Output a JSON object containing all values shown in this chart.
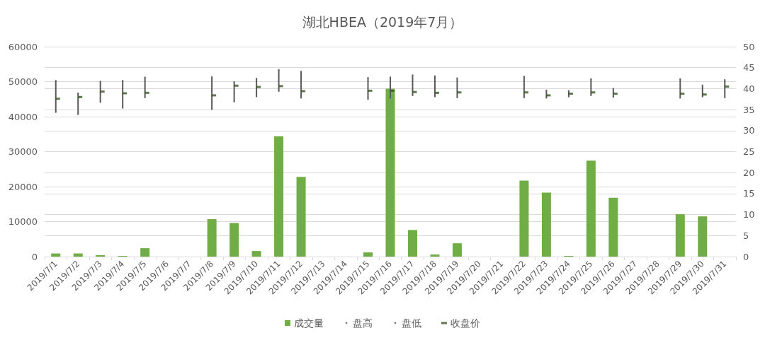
{
  "chart_data": {
    "type": "bar",
    "title": "湖北HBEA（2019年7月）",
    "categories": [
      "2019/7/1",
      "2019/7/2",
      "2019/7/3",
      "2019/7/4",
      "2019/7/5",
      "2019/7/6",
      "2019/7/7",
      "2019/7/8",
      "2019/7/9",
      "2019/7/10",
      "2019/7/11",
      "2019/7/12",
      "2019/7/13",
      "2019/7/14",
      "2019/7/15",
      "2019/7/16",
      "2019/7/17",
      "2019/7/18",
      "2019/7/19",
      "2019/7/20",
      "2019/7/21",
      "2019/7/22",
      "2019/7/23",
      "2019/7/24",
      "2019/7/25",
      "2019/7/26",
      "2019/7/27",
      "2019/7/28",
      "2019/7/29",
      "2019/7/30",
      "2019/7/31"
    ],
    "series": [
      {
        "name": "成交量",
        "type": "bar",
        "color": "#70ad47",
        "values": [
          900,
          900,
          400,
          200,
          2400,
          null,
          null,
          10700,
          9600,
          1600,
          34400,
          22800,
          null,
          null,
          1200,
          48000,
          7600,
          600,
          3800,
          null,
          null,
          21700,
          18300,
          200,
          27400,
          16800,
          null,
          null,
          12100,
          11500,
          null
        ]
      },
      {
        "name": "盘高",
        "type": "scatter",
        "axis": "y2",
        "color": "#595959",
        "values": [
          41.9,
          38.9,
          41.7,
          41.9,
          42.7,
          null,
          null,
          42.8,
          41.6,
          42.4,
          44.5,
          44.1,
          null,
          null,
          42.6,
          42.7,
          43.2,
          43.0,
          42.5,
          null,
          null,
          42.9,
          39.6,
          39.5,
          42.3,
          40.0,
          null,
          null,
          42.3,
          40.8,
          42.1
        ]
      },
      {
        "name": "盘低",
        "type": "scatter",
        "axis": "y2",
        "color": "#595959",
        "values": [
          34.4,
          33.9,
          36.8,
          35.4,
          37.9,
          null,
          null,
          35.1,
          36.9,
          38.1,
          39.4,
          37.8,
          null,
          null,
          37.5,
          37.8,
          38.4,
          38.1,
          37.9,
          null,
          null,
          37.9,
          37.8,
          38.1,
          38.4,
          38.0,
          null,
          null,
          37.8,
          38.1,
          37.9
        ]
      },
      {
        "name": "收盘价",
        "type": "scatter",
        "marker": "square",
        "axis": "y2",
        "color": "#375623",
        "values": [
          37.6,
          38.0,
          39.3,
          38.9,
          39.0,
          null,
          null,
          38.4,
          40.7,
          40.4,
          40.6,
          39.4,
          null,
          null,
          39.5,
          39.5,
          39.2,
          39.0,
          39.1,
          null,
          null,
          39.1,
          38.4,
          38.8,
          39.1,
          38.8,
          null,
          null,
          38.8,
          38.6,
          40.5
        ]
      }
    ],
    "ylim": [
      0,
      60000
    ],
    "yticks": [
      0,
      10000,
      20000,
      30000,
      40000,
      50000,
      60000
    ],
    "y2lim": [
      0,
      50
    ],
    "y2ticks": [
      0,
      5,
      10,
      15,
      20,
      25,
      30,
      35,
      40,
      45,
      50
    ],
    "grid": true,
    "legend": "bottom"
  }
}
